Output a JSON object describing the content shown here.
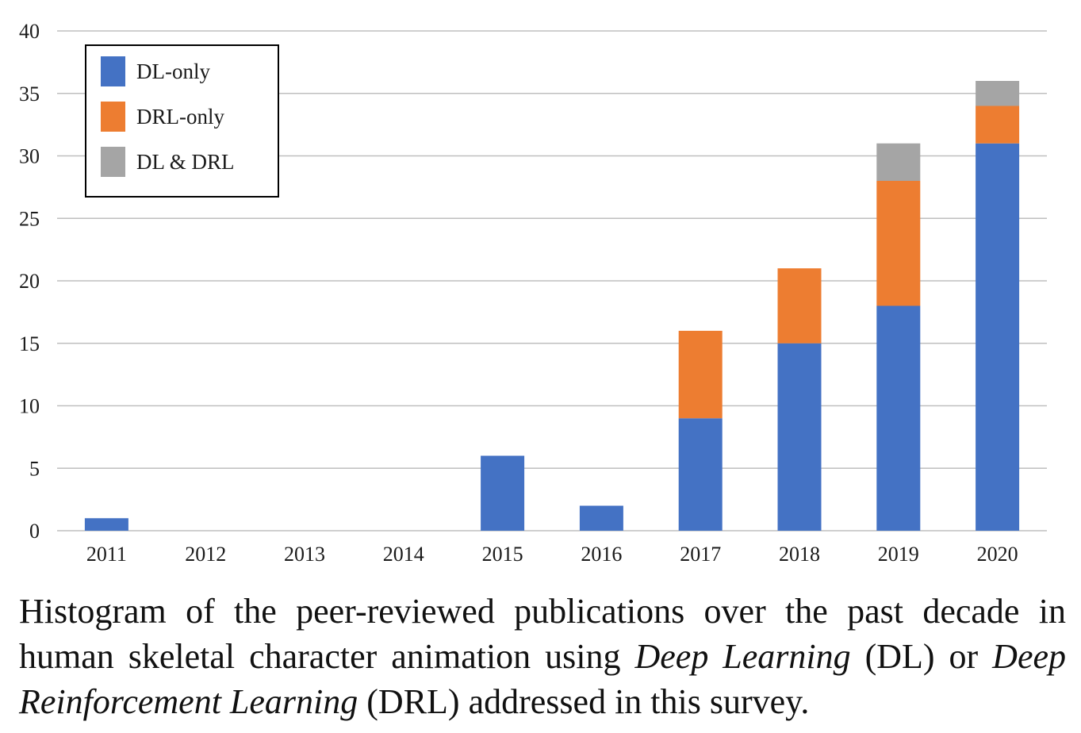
{
  "chart_data": {
    "type": "bar",
    "stacked": true,
    "categories": [
      "2011",
      "2012",
      "2013",
      "2014",
      "2015",
      "2016",
      "2017",
      "2018",
      "2019",
      "2020"
    ],
    "series": [
      {
        "name": "DL-only",
        "color": "#4472C4",
        "values": [
          1,
          0,
          0,
          0,
          6,
          2,
          9,
          15,
          18,
          31
        ]
      },
      {
        "name": "DRL-only",
        "color": "#ED7D31",
        "values": [
          0,
          0,
          0,
          0,
          0,
          0,
          7,
          6,
          10,
          3
        ]
      },
      {
        "name": "DL & DRL",
        "color": "#A5A5A5",
        "values": [
          0,
          0,
          0,
          0,
          0,
          0,
          0,
          0,
          3,
          2
        ]
      }
    ],
    "ylim": [
      0,
      40
    ],
    "yticks": [
      "0",
      "5",
      "10",
      "15",
      "20",
      "25",
      "30",
      "35",
      "40"
    ],
    "grid": true,
    "legend_position": "top-left",
    "title": "",
    "xlabel": "",
    "ylabel": ""
  },
  "caption": {
    "part1": "Histogram of the peer-reviewed publications over the past decade in human skeletal character animation using ",
    "em1": "Deep Learning",
    "part2": " (DL) or ",
    "em2": "Deep Reinforcement Learning",
    "part3": " (DRL) addressed in this survey."
  }
}
